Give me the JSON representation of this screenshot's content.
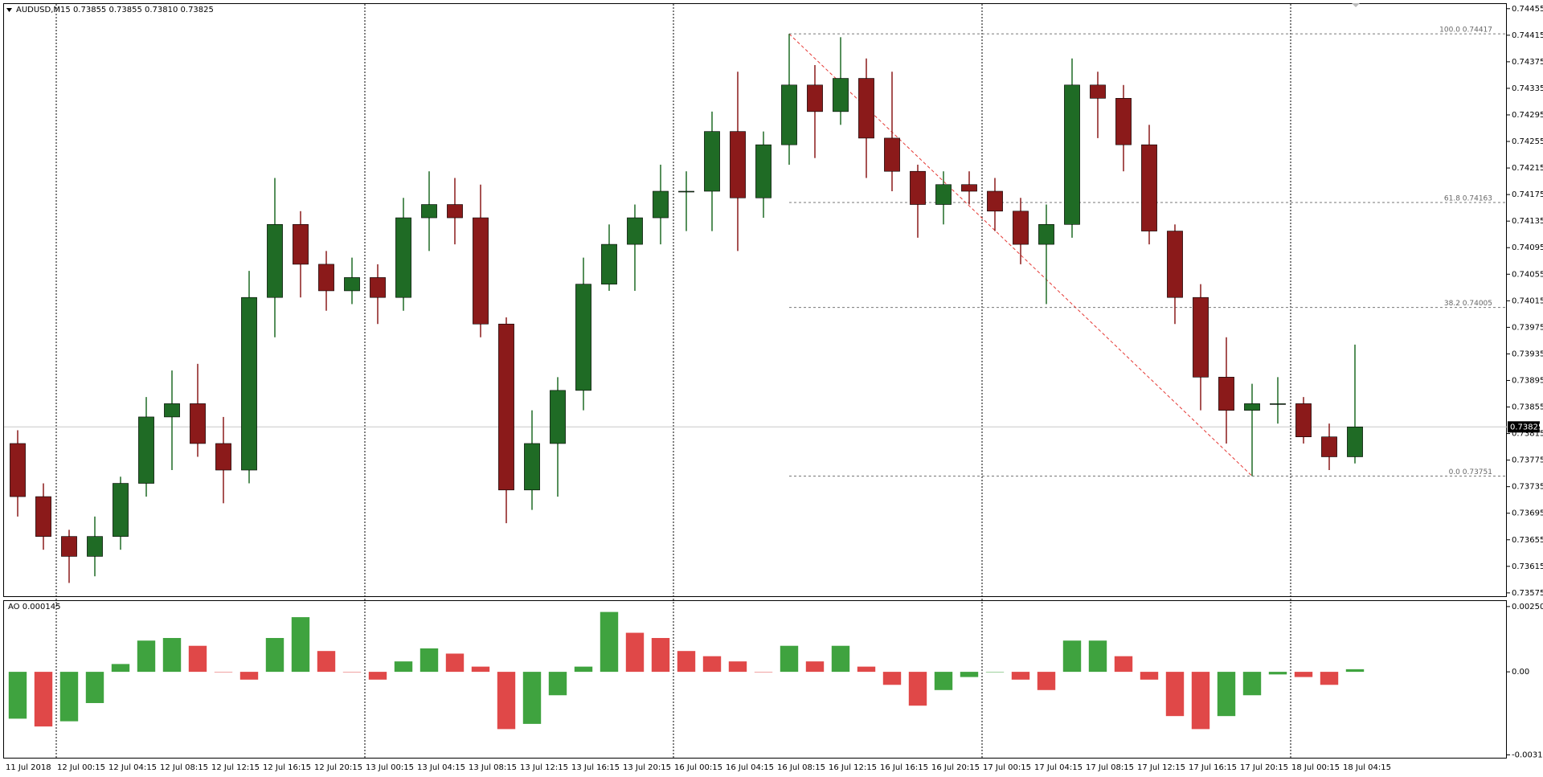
{
  "chart_data": [
    {
      "type": "candlestick",
      "title": "AUDUSD,M15  0.73855 0.73855 0.73810 0.73825",
      "categories": [
        "11 Jul 2018",
        null,
        "12 Jul 00:15",
        null,
        "12 Jul 04:15",
        null,
        "12 Jul 08:15",
        null,
        "12 Jul 12:15",
        null,
        "12 Jul 16:15",
        null,
        "12 Jul 20:15",
        null,
        "13 Jul 00:15",
        null,
        "13 Jul 04:15",
        null,
        "13 Jul 08:15",
        null,
        "13 Jul 12:15",
        null,
        "13 Jul 16:15",
        null,
        "13 Jul 20:15",
        null,
        "16 Jul 00:15",
        null,
        "16 Jul 04:15",
        null,
        "16 Jul 08:15",
        null,
        "16 Jul 12:15",
        null,
        "16 Jul 16:15",
        null,
        "16 Jul 20:15",
        null,
        "17 Jul 00:15",
        null,
        "17 Jul 04:15",
        null,
        "17 Jul 08:15",
        null,
        "17 Jul 12:15",
        null,
        "17 Jul 16:15",
        null,
        "17 Jul 20:15",
        null,
        "18 Jul 00:15",
        null,
        "18 Jul 04:15"
      ],
      "open": [
        0.738,
        0.7372,
        0.7366,
        0.7363,
        0.7366,
        0.7374,
        0.7384,
        0.7386,
        0.738,
        0.7376,
        0.7402,
        0.7413,
        0.7407,
        0.7403,
        0.7405,
        0.7402,
        0.7414,
        0.7416,
        0.7414,
        0.7398,
        0.7373,
        0.738,
        0.7388,
        0.7404,
        0.741,
        0.7414,
        0.7418,
        0.7418,
        0.7427,
        0.7417,
        0.7425,
        0.7434,
        0.743,
        0.7435,
        0.7426,
        0.7421,
        0.7416,
        0.7419,
        0.7418,
        0.7415,
        0.741,
        0.7413,
        0.7434,
        0.7432,
        0.7425,
        0.7412,
        0.7402,
        0.739,
        0.7385,
        0.7386,
        0.7386,
        0.7381,
        0.7378
      ],
      "high": [
        0.7382,
        0.7374,
        0.7367,
        0.7369,
        0.7375,
        0.7387,
        0.7391,
        0.7392,
        0.7384,
        0.7406,
        0.742,
        0.7415,
        0.7409,
        0.7408,
        0.7407,
        0.7417,
        0.7421,
        0.742,
        0.7419,
        0.7399,
        0.7385,
        0.739,
        0.7408,
        0.7413,
        0.7416,
        0.7422,
        0.7421,
        0.743,
        0.7436,
        0.7427,
        0.74417,
        0.7437,
        0.74412,
        0.7438,
        0.7436,
        0.7422,
        0.7421,
        0.7421,
        0.742,
        0.7417,
        0.7416,
        0.7438,
        0.7436,
        0.7434,
        0.7428,
        0.7413,
        0.7404,
        0.7396,
        0.7389,
        0.739,
        0.7387,
        0.7383,
        0.73949
      ],
      "low": [
        0.7369,
        0.7364,
        0.7359,
        0.736,
        0.7364,
        0.7372,
        0.7376,
        0.7378,
        0.7371,
        0.7374,
        0.7396,
        0.7402,
        0.74,
        0.7401,
        0.7398,
        0.74,
        0.7409,
        0.741,
        0.7396,
        0.7368,
        0.737,
        0.7372,
        0.7385,
        0.7403,
        0.7403,
        0.741,
        0.7412,
        0.7412,
        0.7409,
        0.7414,
        0.7422,
        0.7423,
        0.7428,
        0.742,
        0.7418,
        0.7411,
        0.7413,
        0.7416,
        0.7412,
        0.7407,
        0.7401,
        0.7411,
        0.7426,
        0.7421,
        0.741,
        0.7398,
        0.7385,
        0.738,
        0.73751,
        0.7383,
        0.738,
        0.7376,
        0.7377
      ],
      "close": [
        0.7372,
        0.7366,
        0.7363,
        0.7366,
        0.7374,
        0.7384,
        0.7386,
        0.738,
        0.7376,
        0.7402,
        0.7413,
        0.7407,
        0.7403,
        0.7405,
        0.7402,
        0.7414,
        0.7416,
        0.7414,
        0.7398,
        0.7373,
        0.738,
        0.7388,
        0.7404,
        0.741,
        0.7414,
        0.7418,
        0.7418,
        0.7427,
        0.7417,
        0.7425,
        0.7434,
        0.743,
        0.7435,
        0.7426,
        0.7421,
        0.7416,
        0.7419,
        0.7418,
        0.7415,
        0.741,
        0.7413,
        0.7434,
        0.7432,
        0.7425,
        0.7412,
        0.7402,
        0.739,
        0.7385,
        0.7386,
        0.7386,
        0.7381,
        0.7378,
        0.73825
      ],
      "bull_color": "#1f6b25",
      "bear_color": "#8b1a1a",
      "ylim": [
        0.7357,
        0.74462
      ],
      "yticks": [
        0.74455,
        0.74415,
        0.74375,
        0.74335,
        0.74295,
        0.74255,
        0.74215,
        0.74175,
        0.74135,
        0.74095,
        0.74055,
        0.74015,
        0.73975,
        0.73935,
        0.73895,
        0.73855,
        0.73815,
        0.73775,
        0.73735,
        0.73695,
        0.73655,
        0.73615,
        0.73575
      ],
      "last_price": 0.73825,
      "fib_levels": [
        {
          "value": 0.74417,
          "label": "100.0 0.74417"
        },
        {
          "value": 0.74163,
          "label": "61.8 0.74163"
        },
        {
          "value": 0.74005,
          "label": "38.2 0.74005"
        },
        {
          "value": 0.73751,
          "label": "0.0 0.73751"
        }
      ],
      "fib_line_color": "#e53935"
    },
    {
      "type": "bar",
      "title": "AO 0.000145",
      "values": [
        -0.0018,
        -0.0021,
        -0.0019,
        -0.0012,
        0.0003,
        0.0012,
        0.0013,
        0.001,
        0.0,
        -0.0003,
        0.0013,
        0.0021,
        0.0008,
        0.0,
        -0.0003,
        0.0004,
        0.0009,
        0.0007,
        0.0002,
        -0.0022,
        -0.002,
        -0.0009,
        0.0002,
        0.0023,
        0.0015,
        0.0013,
        0.0008,
        0.0006,
        0.0004,
        0.0,
        0.001,
        0.0004,
        0.001,
        0.0002,
        -0.0005,
        -0.0013,
        -0.0007,
        -0.0002,
        0.0,
        -0.0003,
        -0.0007,
        0.0012,
        0.0012,
        0.0006,
        -0.0003,
        -0.0017,
        -0.0022,
        -0.0017,
        -0.0009,
        -0.0001,
        -0.0002,
        -0.0005,
        0.0001
      ],
      "up_color": "#3fa33f",
      "down_color": "#e04848",
      "ylim": [
        -0.0033,
        0.00272
      ],
      "yticks": [
        0.002508,
        {
          "value": 0,
          "label": "0.00"
        },
        -0.003191
      ]
    }
  ]
}
